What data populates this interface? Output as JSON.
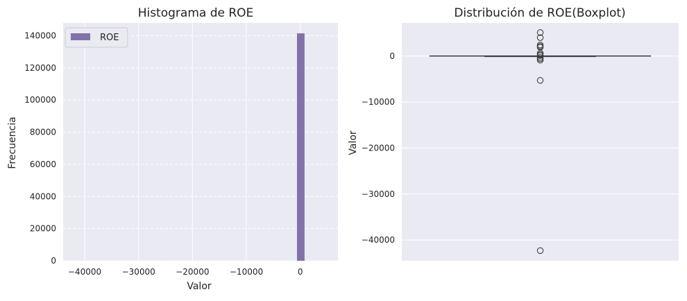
{
  "figure": {
    "background": "#ffffff",
    "axes_background": "#eaeaf2",
    "grid_color": "#ffffff"
  },
  "chart_data": [
    {
      "type": "bar",
      "subtype": "histogram",
      "title": "Histograma de ROE",
      "xlabel": "Valor",
      "ylabel": "Frecuencia",
      "xlim": [
        -44000,
        7000
      ],
      "ylim": [
        0,
        148000
      ],
      "xticks": [
        -40000,
        -30000,
        -20000,
        -10000,
        0
      ],
      "xtick_labels": [
        "−40000",
        "−30000",
        "−20000",
        "−10000",
        "0"
      ],
      "yticks": [
        0,
        20000,
        40000,
        60000,
        80000,
        100000,
        120000,
        140000
      ],
      "ytick_labels": [
        "0",
        "20000",
        "40000",
        "60000",
        "80000",
        "100000",
        "120000",
        "140000"
      ],
      "bins": [
        {
          "x0": -600,
          "x1": 800,
          "count": 141500
        }
      ],
      "bar_color": "#8172a8",
      "legend": {
        "position": "top-left",
        "entries": [
          {
            "label": "ROE",
            "color": "#8172a8"
          }
        ]
      },
      "grid": {
        "horizontal": "dashed",
        "vertical": "solid"
      }
    },
    {
      "type": "boxplot",
      "title": "Distribución de ROE(Boxplot)",
      "ylabel": "Valor",
      "ylim": [
        -44500,
        7200
      ],
      "yticks": [
        0,
        -10000,
        -20000,
        -30000,
        -40000
      ],
      "ytick_labels": [
        "0",
        "−10000",
        "−20000",
        "−30000",
        "−40000"
      ],
      "box": {
        "q1": -20,
        "median": 5,
        "q3": 30,
        "whisker_low": -60,
        "whisker_high": 80
      },
      "outliers": [
        5100,
        4000,
        2400,
        2100,
        1900,
        600,
        300,
        100,
        -300,
        -600,
        -900,
        -5300,
        -42300
      ],
      "line_color": "#3d3d3d",
      "grid": {
        "horizontal": "solid"
      }
    }
  ]
}
